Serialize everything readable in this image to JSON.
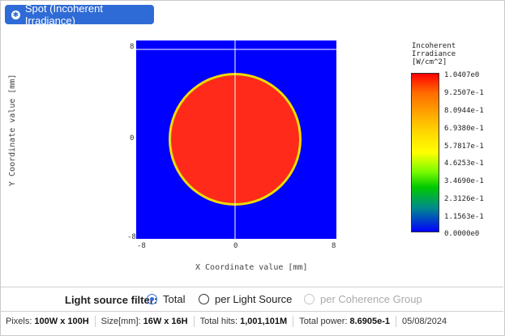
{
  "title_button": {
    "label": "Spot (Incoherent Irradiance)",
    "icon": "settings-icon"
  },
  "plot": {
    "x_axis_label": "X Coordinate value [mm]",
    "y_axis_label": "Y Coordinate value [mm]",
    "x_ticks": [
      "-8",
      "0",
      "8"
    ],
    "y_ticks": [
      "8",
      "0",
      "-8"
    ],
    "colors": {
      "background": "#0000ff",
      "spot": "#ff2a1a",
      "edge": "#ffd700",
      "crosshair": "#ffffff"
    }
  },
  "colorbar": {
    "title_lines": [
      "Incoherent",
      "Irradiance",
      "[W/cm^2]"
    ],
    "ticks": [
      "1.0407e0",
      "9.2507e-1",
      "8.0944e-1",
      "6.9380e-1",
      "5.7817e-1",
      "4.6253e-1",
      "3.4690e-1",
      "2.3126e-1",
      "1.1563e-1",
      "0.0000e0"
    ]
  },
  "filter": {
    "label": "Light source filter:",
    "options": [
      {
        "label": "Total",
        "selected": true,
        "disabled": false
      },
      {
        "label": "per Light Source",
        "selected": false,
        "disabled": false
      },
      {
        "label": "per Coherence Group",
        "selected": false,
        "disabled": true
      }
    ]
  },
  "status": {
    "pixels_label": "Pixels:",
    "pixels_value": "100W x 100H",
    "size_label": "Size[mm]:",
    "size_value": "16W x 16H",
    "hits_label": "Total hits:",
    "hits_value": "1,001,101M",
    "power_label": "Total power:",
    "power_value": "8.6905e-1",
    "date": "05/08/2024"
  }
}
